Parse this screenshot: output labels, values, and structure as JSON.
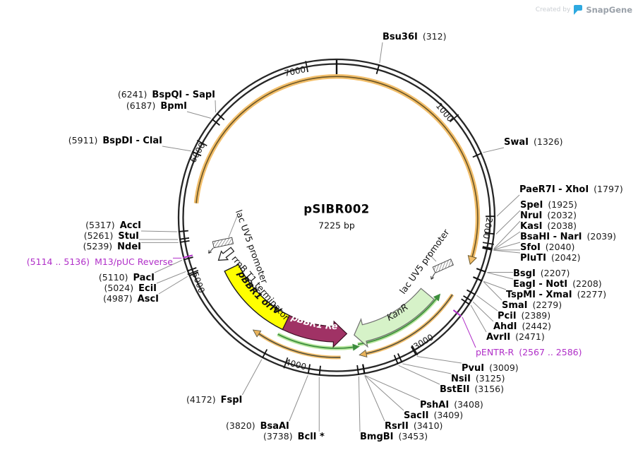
{
  "watermark": {
    "created_by": "Created by",
    "brand": "SnapGene"
  },
  "plasmid": {
    "name": "pSIBR002",
    "size": "7225 bp",
    "length_bp": 7225
  },
  "tick_labels": [
    {
      "text": "1000"
    },
    {
      "text": "2000"
    },
    {
      "text": "3000"
    },
    {
      "text": "4000"
    },
    {
      "text": "5000"
    },
    {
      "text": "6000"
    },
    {
      "text": "7000"
    }
  ],
  "features": [
    {
      "label": "pBBR1 oriV",
      "color": "#FFFF00"
    },
    {
      "label": "pBBR1 Rep",
      "color": "#A03265"
    },
    {
      "label": "KanR",
      "color": "#D6F2C8"
    },
    {
      "label": "lac UV5 promoter"
    },
    {
      "label": "lac UV5 promoter"
    },
    {
      "label": "rrnB T1 terminator"
    }
  ],
  "colors": {
    "backbone": "#262626",
    "orf_arrow": "#F2BE6A",
    "orf_green": "#3E8E3E",
    "primer_label": "#b02fc8",
    "leader_line": "#8f8f8f",
    "brand_blue": "#2ea9e0"
  },
  "sites": [
    {
      "name": "Bsu36I",
      "pos": "(312)",
      "bp": 312
    },
    {
      "name": "SwaI",
      "pos": "(1326)",
      "bp": 1326
    },
    {
      "name": "PaeR7I - XhoI",
      "pos": "(1797)",
      "bp": 1797
    },
    {
      "name": "SpeI",
      "pos": "(1925)",
      "bp": 1925
    },
    {
      "name": "NruI",
      "pos": "(2032)",
      "bp": 2032
    },
    {
      "name": "KasI",
      "pos": "(2038)",
      "bp": 2038
    },
    {
      "name": "BsaHI - NarI",
      "pos": "(2039)",
      "bp": 2039
    },
    {
      "name": "SfoI",
      "pos": "(2040)",
      "bp": 2040
    },
    {
      "name": "PluTI",
      "pos": "(2042)",
      "bp": 2042
    },
    {
      "name": "BsgI",
      "pos": "(2207)",
      "bp": 2207
    },
    {
      "name": "EagI - NotI",
      "pos": "(2208)",
      "bp": 2208
    },
    {
      "name": "TspMI - XmaI",
      "pos": "(2277)",
      "bp": 2277
    },
    {
      "name": "SmaI",
      "pos": "(2279)",
      "bp": 2279
    },
    {
      "name": "PciI",
      "pos": "(2389)",
      "bp": 2389
    },
    {
      "name": "AhdI",
      "pos": "(2442)",
      "bp": 2442
    },
    {
      "name": "AvrII",
      "pos": "(2471)",
      "bp": 2471
    },
    {
      "name": "pENTR-R",
      "pos": "(2567 .. 2586)",
      "bp": 2576,
      "primer": true
    },
    {
      "name": "PvuI",
      "pos": "(3009)",
      "bp": 3009
    },
    {
      "name": "NsiI",
      "pos": "(3125)",
      "bp": 3125
    },
    {
      "name": "BstEII",
      "pos": "(3156)",
      "bp": 3156
    },
    {
      "name": "PshAI",
      "pos": "(3408)",
      "bp": 3408
    },
    {
      "name": "SacII",
      "pos": "(3409)",
      "bp": 3409
    },
    {
      "name": "RsrII",
      "pos": "(3410)",
      "bp": 3410
    },
    {
      "name": "BmgBI",
      "pos": "(3453)",
      "bp": 3453
    },
    {
      "name": "BclI *",
      "pos": "(3738)",
      "bp": 3738
    },
    {
      "name": "BsaAI",
      "pos": "(3820)",
      "bp": 3820
    },
    {
      "name": "FspI",
      "pos": "(4172)",
      "bp": 4172
    },
    {
      "name": "AscI",
      "pos": "(4987)",
      "bp": 4987
    },
    {
      "name": "EciI",
      "pos": "(5024)",
      "bp": 5024
    },
    {
      "name": "PacI",
      "pos": "(5110)",
      "bp": 5110
    },
    {
      "name": "M13/pUC Reverse",
      "pos": "(5114 .. 5136)",
      "bp": 5125,
      "primer": true
    },
    {
      "name": "NdeI",
      "pos": "(5239)",
      "bp": 5239
    },
    {
      "name": "StuI",
      "pos": "(5261)",
      "bp": 5261
    },
    {
      "name": "AccI",
      "pos": "(5317)",
      "bp": 5317
    },
    {
      "name": "BspDI - ClaI",
      "pos": "(5911)",
      "bp": 5911
    },
    {
      "name": "BpmI",
      "pos": "(6187)",
      "bp": 6187
    },
    {
      "name": "BspQI - SapI",
      "pos": "(6241)",
      "bp": 6241
    }
  ]
}
